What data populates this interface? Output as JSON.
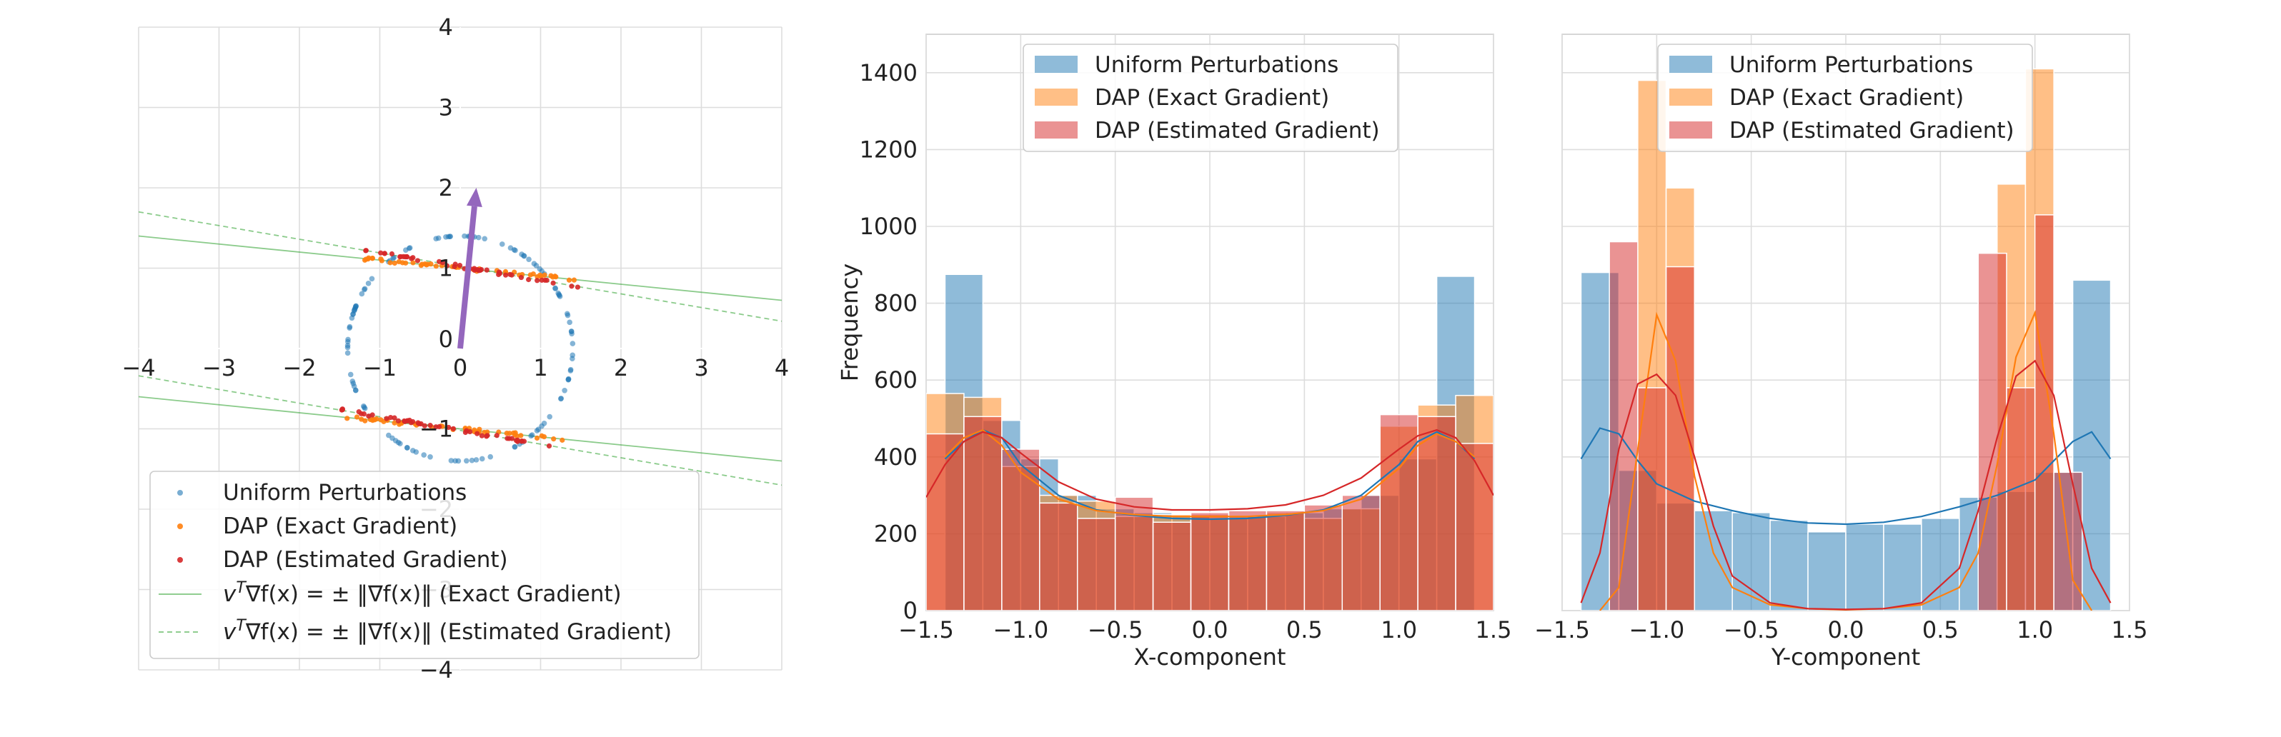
{
  "chart_data": [
    {
      "type": "scatter",
      "title": "",
      "xlabel": "",
      "ylabel": "",
      "xlim": [
        -4,
        4
      ],
      "ylim": [
        -4,
        4
      ],
      "xticks": [
        -4,
        -3,
        -2,
        -1,
        0,
        1,
        2,
        3,
        4
      ],
      "yticks": [
        -4,
        -3,
        -2,
        -1,
        0,
        1,
        2,
        3,
        4
      ],
      "xtick_labels": [
        "−4",
        "−3",
        "−2",
        "−1",
        "0",
        "1",
        "2",
        "3",
        "4"
      ],
      "ytick_labels": [
        "−4",
        "−3",
        "−2",
        "−1",
        "0",
        "1",
        "2",
        "3",
        "4"
      ],
      "grid": true,
      "axes_centered": true,
      "legend_position": "bottom-left",
      "arrow": {
        "from": [
          0,
          0
        ],
        "to": [
          0.2,
          2.0
        ],
        "color": "#9467bd"
      },
      "series": [
        {
          "name": "Uniform Perturbations",
          "kind": "points",
          "color": "#1f77b4",
          "shape": "ellipse",
          "center": [
            0,
            0
          ],
          "radii": [
            1.4,
            1.4
          ]
        },
        {
          "name": "DAP (Exact Gradient)",
          "kind": "points",
          "color": "#ff7f0e",
          "segments": [
            {
              "x_range": [
                -1.3,
                1.5
              ],
              "intercept": 1.0,
              "slope": -0.1
            },
            {
              "x_range": [
                -1.5,
                1.3
              ],
              "intercept": -1.0,
              "slope": -0.1
            }
          ]
        },
        {
          "name": "DAP (Estimated Gradient)",
          "kind": "points",
          "color": "#d62728",
          "segments": [
            {
              "x_range": [
                -1.2,
                1.6
              ],
              "intercept": 1.02,
              "slope": -0.17
            },
            {
              "x_range": [
                -1.6,
                1.2
              ],
              "intercept": -1.02,
              "slope": -0.17
            }
          ]
        },
        {
          "name": "v^T∇f(x) = ± ‖∇f(x)‖ (Exact Gradient)",
          "kind": "line",
          "style": "solid",
          "color": "#2ca02c",
          "lines": [
            {
              "slope": -0.1,
              "intercept": 1.0
            },
            {
              "slope": -0.1,
              "intercept": -1.0
            }
          ]
        },
        {
          "name": "v^T∇f(x) = ± ‖∇f(x)‖ (Estimated Gradient)",
          "kind": "line",
          "style": "dashed",
          "color": "#2ca02c",
          "lines": [
            {
              "slope": -0.17,
              "intercept": 1.02
            },
            {
              "slope": -0.17,
              "intercept": -1.02
            }
          ]
        }
      ],
      "legend_labels": [
        {
          "name": "Uniform Perturbations"
        },
        {
          "name": "DAP (Exact Gradient)"
        },
        {
          "name": "DAP (Estimated Gradient)"
        },
        {
          "pre": "v",
          "sup": "T",
          "post": "∇f(x) = ± ‖∇f(x)‖ (Exact Gradient)"
        },
        {
          "pre": "v",
          "sup": "T",
          "post": "∇f(x) = ± ‖∇f(x)‖ (Estimated Gradient)"
        }
      ]
    },
    {
      "type": "bar",
      "title": "",
      "xlabel": "X-component",
      "ylabel": "Frequency",
      "xlim": [
        -1.5,
        1.5
      ],
      "ylim": [
        0,
        1500
      ],
      "xticks": [
        -1.5,
        -1.0,
        -0.5,
        0.0,
        0.5,
        1.0,
        1.5
      ],
      "xtick_labels": [
        "−1.5",
        "−1.0",
        "−0.5",
        "0.0",
        "0.5",
        "1.0",
        "1.5"
      ],
      "yticks": [
        0,
        200,
        400,
        600,
        800,
        1000,
        1200,
        1400
      ],
      "ytick_labels": [
        "0",
        "200",
        "400",
        "600",
        "800",
        "1000",
        "1200",
        "1400"
      ],
      "grid": true,
      "legend_position": "top-center",
      "series": [
        {
          "name": "Uniform Perturbations",
          "color": "#1f77b4",
          "bin_edges": [
            -1.4,
            -1.2,
            -1.0,
            -0.8,
            -0.6,
            -0.4,
            -0.2,
            0.0,
            0.2,
            0.4,
            0.6,
            0.8,
            1.0,
            1.2,
            1.4
          ],
          "counts": [
            875,
            495,
            395,
            300,
            265,
            255,
            245,
            240,
            245,
            255,
            265,
            300,
            395,
            870
          ],
          "kde_x": [
            -1.4,
            -1.3,
            -1.2,
            -1.1,
            -1.0,
            -0.8,
            -0.6,
            -0.4,
            -0.2,
            0.0,
            0.2,
            0.4,
            0.6,
            0.8,
            1.0,
            1.1,
            1.2,
            1.3,
            1.4
          ],
          "kde_y": [
            395,
            440,
            470,
            450,
            380,
            300,
            262,
            248,
            240,
            238,
            240,
            248,
            262,
            300,
            380,
            440,
            465,
            440,
            395
          ]
        },
        {
          "name": "DAP (Exact Gradient)",
          "color": "#ff7f0e",
          "bin_edges": [
            -1.5,
            -1.3,
            -1.1,
            -0.9,
            -0.7,
            -0.5,
            -0.3,
            -0.1,
            0.1,
            0.3,
            0.5,
            0.7,
            0.9,
            1.1,
            1.3,
            1.5
          ],
          "counts": [
            565,
            555,
            375,
            300,
            285,
            245,
            250,
            250,
            245,
            255,
            240,
            265,
            480,
            535,
            560
          ],
          "kde_x": [
            -1.4,
            -1.3,
            -1.2,
            -1.1,
            -1.0,
            -0.8,
            -0.6,
            -0.4,
            -0.2,
            0.0,
            0.2,
            0.4,
            0.6,
            0.8,
            1.0,
            1.1,
            1.2,
            1.3,
            1.4
          ],
          "kde_y": [
            400,
            450,
            470,
            430,
            360,
            290,
            260,
            250,
            245,
            245,
            245,
            250,
            260,
            290,
            370,
            430,
            460,
            440,
            400
          ]
        },
        {
          "name": "DAP (Estimated Gradient)",
          "color": "#d62728",
          "bin_edges": [
            -1.5,
            -1.3,
            -1.1,
            -0.9,
            -0.7,
            -0.5,
            -0.3,
            -0.1,
            0.1,
            0.3,
            0.5,
            0.7,
            0.9,
            1.1,
            1.3,
            1.5
          ],
          "counts": [
            460,
            505,
            420,
            280,
            240,
            295,
            230,
            255,
            260,
            260,
            275,
            300,
            510,
            505,
            435
          ],
          "kde_x": [
            -1.5,
            -1.4,
            -1.3,
            -1.2,
            -1.1,
            -1.0,
            -0.8,
            -0.6,
            -0.4,
            -0.2,
            0.0,
            0.2,
            0.4,
            0.6,
            0.8,
            1.0,
            1.1,
            1.2,
            1.3,
            1.4,
            1.5
          ],
          "kde_y": [
            295,
            380,
            440,
            465,
            450,
            410,
            335,
            290,
            270,
            262,
            262,
            265,
            275,
            300,
            345,
            420,
            455,
            470,
            450,
            390,
            300
          ]
        }
      ]
    },
    {
      "type": "bar",
      "title": "",
      "xlabel": "Y-component",
      "ylabel": "",
      "xlim": [
        -1.5,
        1.5
      ],
      "ylim": [
        0,
        1500
      ],
      "xticks": [
        -1.5,
        -1.0,
        -0.5,
        0.0,
        0.5,
        1.0,
        1.5
      ],
      "xtick_labels": [
        "−1.5",
        "−1.0",
        "−0.5",
        "0.0",
        "0.5",
        "1.0",
        "1.5"
      ],
      "yticks": [
        0,
        200,
        400,
        600,
        800,
        1000,
        1200,
        1400
      ],
      "grid": true,
      "legend_position": "top-center",
      "series": [
        {
          "name": "Uniform Perturbations",
          "color": "#1f77b4",
          "bin_edges": [
            -1.4,
            -1.2,
            -1.0,
            -0.8,
            -0.6,
            -0.4,
            -0.2,
            0.0,
            0.2,
            0.4,
            0.6,
            0.8,
            1.0,
            1.2,
            1.4
          ],
          "counts": [
            880,
            365,
            280,
            260,
            255,
            235,
            205,
            225,
            225,
            240,
            295,
            310,
            360,
            860
          ],
          "kde_x": [
            -1.4,
            -1.3,
            -1.2,
            -1.1,
            -1.0,
            -0.8,
            -0.6,
            -0.4,
            -0.2,
            0.0,
            0.2,
            0.4,
            0.6,
            0.8,
            1.0,
            1.1,
            1.2,
            1.3,
            1.4
          ],
          "kde_y": [
            395,
            475,
            460,
            390,
            330,
            285,
            260,
            240,
            228,
            225,
            230,
            245,
            270,
            300,
            340,
            390,
            440,
            465,
            395
          ]
        },
        {
          "name": "DAP (Exact Gradient)",
          "color": "#ff7f0e",
          "bin_edges": [
            -1.1,
            -0.95,
            -0.8,
            0.8,
            0.95,
            1.1
          ],
          "counts": [
            1380,
            1100,
            0,
            1110,
            1410
          ],
          "kde_x": [
            -1.3,
            -1.2,
            -1.1,
            -1.0,
            -0.9,
            -0.8,
            -0.7,
            -0.6,
            -0.4,
            -0.2,
            0.0,
            0.2,
            0.4,
            0.6,
            0.7,
            0.8,
            0.9,
            1.0,
            1.1,
            1.2,
            1.3
          ],
          "kde_y": [
            0,
            60,
            420,
            770,
            650,
            350,
            150,
            60,
            15,
            5,
            2,
            5,
            15,
            60,
            150,
            380,
            660,
            775,
            460,
            80,
            0
          ]
        },
        {
          "name": "DAP (Estimated Gradient)",
          "color": "#d62728",
          "bin_edges": [
            -1.25,
            -1.1,
            -0.95,
            -0.8,
            -0.65,
            0.7,
            0.85,
            1.0,
            1.1,
            1.25
          ],
          "counts": [
            960,
            580,
            895,
            0,
            0,
            930,
            580,
            1030,
            360
          ],
          "kde_x": [
            -1.4,
            -1.3,
            -1.2,
            -1.1,
            -1.0,
            -0.9,
            -0.8,
            -0.7,
            -0.6,
            -0.4,
            -0.2,
            0.0,
            0.2,
            0.4,
            0.6,
            0.7,
            0.8,
            0.9,
            1.0,
            1.1,
            1.2,
            1.3,
            1.4
          ],
          "kde_y": [
            20,
            150,
            420,
            590,
            615,
            560,
            400,
            220,
            90,
            20,
            5,
            3,
            5,
            20,
            110,
            260,
            450,
            610,
            650,
            560,
            330,
            110,
            20
          ]
        }
      ]
    }
  ]
}
